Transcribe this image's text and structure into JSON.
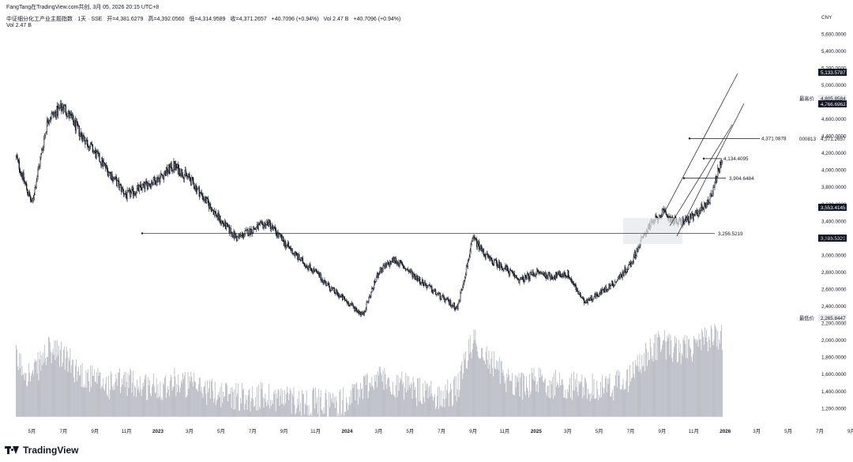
{
  "header": {
    "share_text": "FangTang在TradingView.com共创, 3月 05, 2026 20:15 UTC+8",
    "symbol_line": "中证细分化工产业主题指数 · 1天 · SSE",
    "open": "开=4,381.6279",
    "high": "高=4,392.0560",
    "low": "低=4,314.9589",
    "close": "收=4,371.2657",
    "change": "+40.7096 (+0.94%)",
    "vol_inline": "Vol 2.47 B",
    "change2": "+40.7096 (+0.94%)",
    "vol_line": "Vol   2.47 B"
  },
  "axis": {
    "currency": "CNY",
    "price_ticks": [
      "5,600.0000",
      "5,400.0000",
      "5,200.0000",
      "5,000.0000",
      "4,800.0000",
      "4,600.0000",
      "4,400.0000",
      "4,200.0000",
      "4,000.0000",
      "3,800.0000",
      "3,600.0000",
      "3,400.0000",
      "3,200.0000",
      "3,000.0000",
      "2,800.0000",
      "2,600.0000",
      "2,400.0000",
      "2,200.0000",
      "2,000.0000",
      "1,800.0000",
      "1,600.0000",
      "1,400.0000",
      "1,200.0000"
    ],
    "time_ticks": [
      "5月",
      "7月",
      "9月",
      "11月",
      "2023",
      "3月",
      "5月",
      "7月",
      "9月",
      "11月",
      "2024",
      "3月",
      "5月",
      "7月",
      "9月",
      "11月",
      "2025",
      "3月",
      "5月",
      "7月",
      "9月",
      "11月",
      "2026",
      "3月",
      "5月",
      "7月",
      "9月"
    ],
    "time_bold": [
      "2023",
      "2024",
      "2025",
      "2026"
    ]
  },
  "labels": {
    "high_tag": "最高价",
    "high_value": "4,805.8584",
    "low_tag": "最低价",
    "low_value": "2,265.8447",
    "symbol_code": "000813",
    "badges": [
      "5,133.5787",
      "4,766.6963",
      "3,553.4145",
      "3,186.5321"
    ],
    "current_price": "4,371.2657",
    "level_4371": "4,371.0878",
    "level_4134": "4,134.4095",
    "level_3904": "3,904.6484",
    "level_3256": "3,256.5219"
  },
  "footer": {
    "brand": "TradingView"
  },
  "colors": {
    "candle": "#131722",
    "volume": "#b2b5be",
    "line": "#131722",
    "box": "#d1d4dc",
    "badge": "#131722"
  },
  "chart_data": {
    "type": "line",
    "title": "中证细分化工产业主题指数 · 1天 · SSE",
    "xlabel": "",
    "ylabel": "",
    "ylim": [
      1100,
      5750
    ],
    "x": [
      "2022-04",
      "2022-05",
      "2022-06",
      "2022-07",
      "2022-08",
      "2022-09",
      "2022-10",
      "2022-11",
      "2022-12",
      "2023-01",
      "2023-02",
      "2023-03",
      "2023-04",
      "2023-05",
      "2023-06",
      "2023-07",
      "2023-08",
      "2023-09",
      "2023-10",
      "2023-11",
      "2023-12",
      "2024-01",
      "2024-02",
      "2024-03",
      "2024-04",
      "2024-05",
      "2024-06",
      "2024-07",
      "2024-08",
      "2024-09",
      "2024-10",
      "2024-11",
      "2024-12",
      "2025-01",
      "2025-02",
      "2025-03",
      "2025-04",
      "2025-05",
      "2025-06",
      "2025-07",
      "2025-08",
      "2025-09",
      "2025-10",
      "2025-11",
      "2025-12",
      "2026-01",
      "2026-02",
      "2026-03"
    ],
    "series": [
      {
        "values": [
          4150,
          3600,
          4600,
          4750,
          4450,
          4200,
          3950,
          3700,
          3800,
          3900,
          4050,
          3900,
          3650,
          3400,
          3200,
          3300,
          3380,
          3150,
          2950,
          2800,
          2600,
          2450,
          2300,
          2800,
          2950,
          2800,
          2650,
          2500,
          2380,
          3200,
          2950,
          2850,
          2700,
          2800,
          2750,
          2780,
          2450,
          2550,
          2680,
          2900,
          3300,
          3500,
          3380,
          3450,
          3650,
          4250,
          4450,
          4371
        ]
      }
    ],
    "volume": [
      1700,
      1500,
      1800,
      1750,
      1550,
      1450,
      1400,
      1450,
      1400,
      1380,
      1450,
      1400,
      1350,
      1300,
      1280,
      1260,
      1280,
      1250,
      1220,
      1200,
      1190,
      1210,
      1380,
      1500,
      1420,
      1350,
      1300,
      1280,
      1350,
      1950,
      1700,
      1500,
      1400,
      1450,
      1420,
      1400,
      1380,
      1350,
      1400,
      1500,
      1750,
      1900,
      1800,
      1850,
      1950,
      2000,
      1900,
      2100
    ],
    "levels": [
      {
        "label": "4,371.0878",
        "value": 4371.0878
      },
      {
        "label": "4,134.4095",
        "value": 4134.4095
      },
      {
        "label": "3,904.6484",
        "value": 3904.6484
      },
      {
        "label": "3,256.5219",
        "value": 3256.5219
      }
    ],
    "high": 4805.8584,
    "low": 2265.8447
  }
}
